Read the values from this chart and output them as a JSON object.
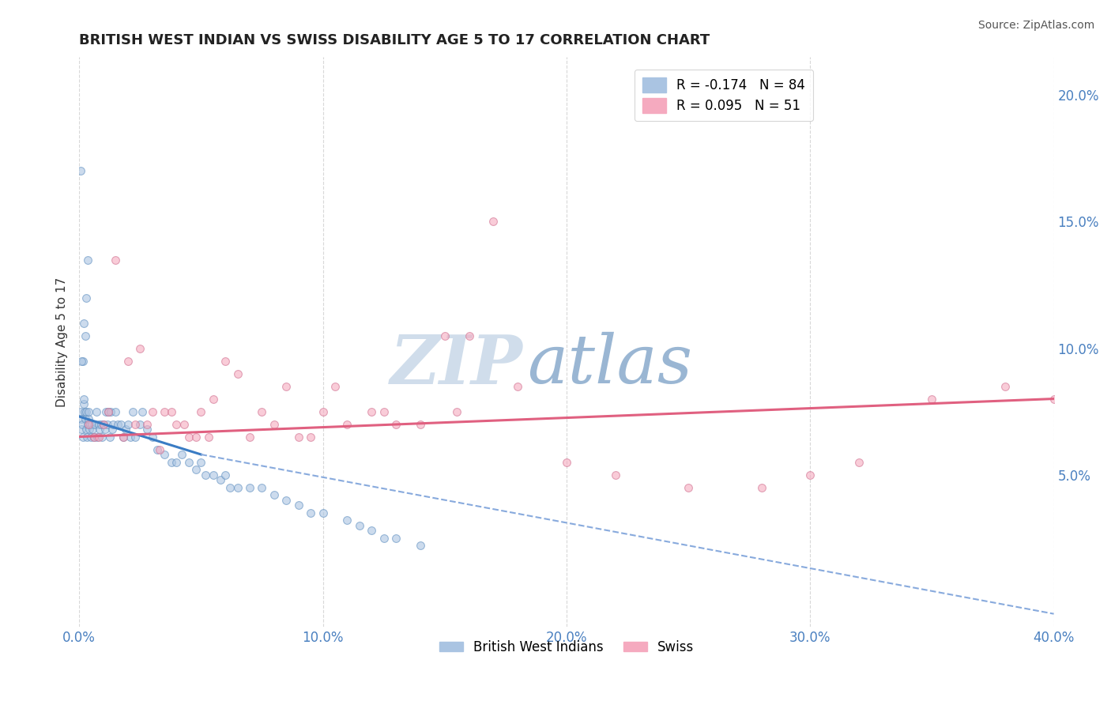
{
  "title": "BRITISH WEST INDIAN VS SWISS DISABILITY AGE 5 TO 17 CORRELATION CHART",
  "source": "Source: ZipAtlas.com",
  "xlabel_vals": [
    0.0,
    10.0,
    20.0,
    30.0,
    40.0
  ],
  "ylabel_vals": [
    5.0,
    10.0,
    15.0,
    20.0
  ],
  "xlim": [
    0.0,
    40.0
  ],
  "ylim": [
    -1.0,
    21.5
  ],
  "legend_entries": [
    {
      "label": "R = -0.174   N = 84",
      "color": "#aac4e2"
    },
    {
      "label": "R = 0.095   N = 51",
      "color": "#f5aabf"
    }
  ],
  "legend_bottom": [
    {
      "label": "British West Indians",
      "color": "#aac4e2"
    },
    {
      "label": "Swiss",
      "color": "#f5aabf"
    }
  ],
  "blue_scatter_x": [
    0.05,
    0.08,
    0.1,
    0.12,
    0.15,
    0.18,
    0.2,
    0.22,
    0.25,
    0.28,
    0.3,
    0.32,
    0.35,
    0.38,
    0.4,
    0.42,
    0.45,
    0.48,
    0.5,
    0.55,
    0.6,
    0.65,
    0.7,
    0.75,
    0.8,
    0.85,
    0.9,
    0.95,
    1.0,
    1.05,
    1.1,
    1.15,
    1.2,
    1.25,
    1.3,
    1.35,
    1.4,
    1.5,
    1.6,
    1.7,
    1.8,
    1.9,
    2.0,
    2.1,
    2.2,
    2.3,
    2.5,
    2.6,
    2.8,
    3.0,
    3.2,
    3.5,
    3.8,
    4.0,
    4.2,
    4.5,
    4.8,
    5.0,
    5.2,
    5.5,
    5.8,
    6.0,
    6.2,
    6.5,
    7.0,
    7.5,
    8.0,
    8.5,
    9.0,
    9.5,
    10.0,
    11.0,
    11.5,
    12.0,
    12.5,
    13.0,
    14.0,
    0.15,
    0.2,
    0.25,
    0.3,
    0.35,
    0.05,
    0.08
  ],
  "blue_scatter_y": [
    7.5,
    6.8,
    7.2,
    7.0,
    6.5,
    7.8,
    8.0,
    7.5,
    7.2,
    6.8,
    7.5,
    6.5,
    7.0,
    7.2,
    7.5,
    6.8,
    7.0,
    6.5,
    7.0,
    6.8,
    6.5,
    7.0,
    7.5,
    6.5,
    7.0,
    6.8,
    7.0,
    6.5,
    7.0,
    6.8,
    7.5,
    7.0,
    7.5,
    6.5,
    7.5,
    6.8,
    7.0,
    7.5,
    7.0,
    7.0,
    6.5,
    6.8,
    7.0,
    6.5,
    7.5,
    6.5,
    7.0,
    7.5,
    6.8,
    6.5,
    6.0,
    5.8,
    5.5,
    5.5,
    5.8,
    5.5,
    5.2,
    5.5,
    5.0,
    5.0,
    4.8,
    5.0,
    4.5,
    4.5,
    4.5,
    4.5,
    4.2,
    4.0,
    3.8,
    3.5,
    3.5,
    3.2,
    3.0,
    2.8,
    2.5,
    2.5,
    2.2,
    9.5,
    11.0,
    10.5,
    12.0,
    13.5,
    17.0,
    9.5
  ],
  "pink_scatter_x": [
    0.4,
    0.6,
    0.8,
    1.0,
    1.2,
    1.5,
    1.8,
    2.0,
    2.3,
    2.5,
    2.8,
    3.0,
    3.3,
    3.5,
    3.8,
    4.0,
    4.3,
    4.5,
    4.8,
    5.0,
    5.3,
    5.5,
    6.0,
    6.5,
    7.0,
    7.5,
    8.0,
    8.5,
    9.0,
    9.5,
    10.0,
    10.5,
    11.0,
    12.0,
    12.5,
    13.0,
    14.0,
    15.0,
    15.5,
    16.0,
    17.0,
    18.0,
    20.0,
    22.0,
    25.0,
    28.0,
    30.0,
    32.0,
    35.0,
    38.0,
    40.0
  ],
  "pink_scatter_y": [
    7.0,
    6.5,
    6.5,
    7.0,
    7.5,
    13.5,
    6.5,
    9.5,
    7.0,
    10.0,
    7.0,
    7.5,
    6.0,
    7.5,
    7.5,
    7.0,
    7.0,
    6.5,
    6.5,
    7.5,
    6.5,
    8.0,
    9.5,
    9.0,
    6.5,
    7.5,
    7.0,
    8.5,
    6.5,
    6.5,
    7.5,
    8.5,
    7.0,
    7.5,
    7.5,
    7.0,
    7.0,
    10.5,
    7.5,
    10.5,
    15.0,
    8.5,
    5.5,
    5.0,
    4.5,
    4.5,
    5.0,
    5.5,
    8.0,
    8.5,
    8.0
  ],
  "blue_line_x1": 0.0,
  "blue_line_x2": 5.0,
  "blue_line_y1": 7.3,
  "blue_line_y2": 5.8,
  "blue_dashed_x1": 5.0,
  "blue_dashed_x2": 40.0,
  "blue_dashed_y1": 5.8,
  "blue_dashed_y2": -0.5,
  "pink_line_x1": 0.0,
  "pink_line_x2": 40.0,
  "pink_line_y1": 6.5,
  "pink_line_y2": 8.0,
  "line_color_blue": "#3a7cc4",
  "line_color_blue_dashed": "#88aadd",
  "line_color_pink": "#e06080",
  "watermark_zip": "ZIP",
  "watermark_atlas": "atlas",
  "watermark_color_zip": "#c8d8e8",
  "watermark_color_atlas": "#88aacc",
  "bg_color": "#ffffff",
  "grid_color": "#d8d8d8",
  "title_color": "#222222",
  "scatter_alpha": 0.6,
  "scatter_size": 50,
  "blue_scatter_color": "#aac4e2",
  "blue_scatter_edge": "#6090c0",
  "pink_scatter_color": "#f5aabf",
  "pink_scatter_edge": "#d07090"
}
